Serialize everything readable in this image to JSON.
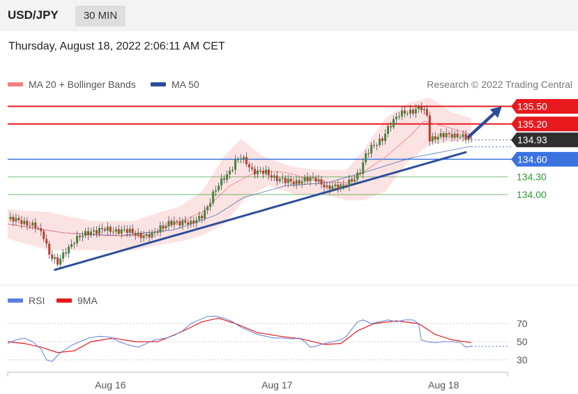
{
  "header": {
    "symbol": "USD/JPY",
    "interval": "30 MIN",
    "datetime": "Thursday, August 18, 2022 2:06:11 AM CET"
  },
  "colors": {
    "resistance": "#e8191d",
    "pivot": "#3a73e0",
    "support": "#2e9a2e",
    "ma20": "#f08080",
    "bands": "#fbd9d9",
    "ma50": "#2c4e9a",
    "trend": "#2c4e9a",
    "rsi": "#5b7fe0",
    "rsi_ma": "#e8191d",
    "candle_up": "#3a8a3a",
    "candle_down": "#c0392b"
  },
  "chart_data": [
    {
      "type": "candlestick",
      "legend": [
        {
          "name": "MA 20 + Bollinger Bands",
          "color": "#f08080"
        },
        {
          "name": "MA 50",
          "color": "#2c4e9a"
        }
      ],
      "credit": "Research © 2022 Trading Central",
      "x_ticks": [
        "Aug 16",
        "Aug 17",
        "Aug 18"
      ],
      "levels": [
        {
          "label": "135.50",
          "value": 135.5,
          "kind": "resistance"
        },
        {
          "label": "135.20",
          "value": 135.2,
          "kind": "resistance"
        },
        {
          "label": "134.93",
          "value": 134.93,
          "kind": "last"
        },
        {
          "label": "134.60",
          "value": 134.6,
          "kind": "pivot"
        },
        {
          "label": "134.30",
          "value": 134.3,
          "kind": "support"
        },
        {
          "label": "134.00",
          "value": 134.0,
          "kind": "support"
        }
      ],
      "close_path": [
        [
          0,
          133.58
        ],
        [
          5,
          133.55
        ],
        [
          10,
          133.45
        ],
        [
          13,
          133.3
        ],
        [
          15,
          133.0
        ],
        [
          18,
          132.82
        ],
        [
          21,
          133.05
        ],
        [
          24,
          133.22
        ],
        [
          27,
          133.3
        ],
        [
          30,
          133.38
        ],
        [
          35,
          133.4
        ],
        [
          40,
          133.39
        ],
        [
          45,
          133.36
        ],
        [
          48,
          133.31
        ],
        [
          50,
          133.28
        ],
        [
          52,
          133.31
        ],
        [
          55,
          133.45
        ],
        [
          58,
          133.5
        ],
        [
          61,
          133.52
        ],
        [
          64,
          133.55
        ],
        [
          66,
          133.5
        ],
        [
          68,
          133.55
        ],
        [
          70,
          133.65
        ],
        [
          72,
          133.8
        ],
        [
          74,
          134.0
        ],
        [
          76,
          134.15
        ],
        [
          78,
          134.3
        ],
        [
          80,
          134.4
        ],
        [
          82,
          134.55
        ],
        [
          84,
          134.62
        ],
        [
          86,
          134.55
        ],
        [
          88,
          134.42
        ],
        [
          90,
          134.38
        ],
        [
          93,
          134.37
        ],
        [
          96,
          134.3
        ],
        [
          100,
          134.22
        ],
        [
          104,
          134.22
        ],
        [
          108,
          134.25
        ],
        [
          111,
          134.28
        ],
        [
          113,
          134.2
        ],
        [
          115,
          134.1
        ],
        [
          117,
          134.12
        ],
        [
          119,
          134.15
        ],
        [
          122,
          134.18
        ],
        [
          125,
          134.25
        ],
        [
          127,
          134.4
        ],
        [
          129,
          134.7
        ],
        [
          131,
          134.8
        ],
        [
          133,
          134.85
        ],
        [
          135,
          134.95
        ],
        [
          137,
          135.15
        ],
        [
          139,
          135.25
        ],
        [
          141,
          135.35
        ],
        [
          143,
          135.4
        ],
        [
          146,
          135.43
        ],
        [
          149,
          135.46
        ],
        [
          151,
          135.35
        ],
        [
          152,
          134.95
        ],
        [
          154,
          134.98
        ],
        [
          157,
          135.0
        ],
        [
          160,
          135.02
        ],
        [
          163,
          135.0
        ],
        [
          165,
          134.95
        ],
        [
          167,
          134.93
        ]
      ],
      "ma50_path": [
        [
          0,
          133.5
        ],
        [
          20,
          133.35
        ],
        [
          40,
          133.3
        ],
        [
          60,
          133.4
        ],
        [
          75,
          133.65
        ],
        [
          85,
          133.95
        ],
        [
          100,
          134.15
        ],
        [
          115,
          134.2
        ],
        [
          130,
          134.4
        ],
        [
          145,
          134.62
        ],
        [
          167,
          134.82
        ]
      ],
      "ma20_path": [
        [
          0,
          133.5
        ],
        [
          20,
          133.35
        ],
        [
          35,
          133.3
        ],
        [
          50,
          133.3
        ],
        [
          60,
          133.5
        ],
        [
          70,
          133.7
        ],
        [
          80,
          134.15
        ],
        [
          90,
          134.4
        ],
        [
          100,
          134.38
        ],
        [
          112,
          134.22
        ],
        [
          122,
          134.2
        ],
        [
          135,
          134.6
        ],
        [
          145,
          135.0
        ],
        [
          150,
          135.25
        ],
        [
          158,
          135.15
        ],
        [
          167,
          135.02
        ]
      ],
      "band_upper_path": [
        [
          0,
          133.75
        ],
        [
          15,
          133.7
        ],
        [
          30,
          133.55
        ],
        [
          45,
          133.55
        ],
        [
          55,
          133.7
        ],
        [
          62,
          133.8
        ],
        [
          70,
          134.05
        ],
        [
          78,
          134.65
        ],
        [
          84,
          134.95
        ],
        [
          92,
          134.65
        ],
        [
          102,
          134.48
        ],
        [
          112,
          134.42
        ],
        [
          122,
          134.42
        ],
        [
          128,
          134.75
        ],
        [
          136,
          135.3
        ],
        [
          144,
          135.55
        ],
        [
          152,
          135.65
        ],
        [
          160,
          135.4
        ],
        [
          167,
          135.3
        ]
      ],
      "band_lower_path": [
        [
          0,
          133.25
        ],
        [
          15,
          133.05
        ],
        [
          30,
          133.05
        ],
        [
          45,
          133.05
        ],
        [
          55,
          133.15
        ],
        [
          62,
          133.2
        ],
        [
          70,
          133.3
        ],
        [
          78,
          133.5
        ],
        [
          86,
          133.95
        ],
        [
          94,
          134.15
        ],
        [
          104,
          134.0
        ],
        [
          114,
          134.0
        ],
        [
          122,
          133.9
        ],
        [
          128,
          133.9
        ],
        [
          136,
          134.05
        ],
        [
          144,
          134.55
        ],
        [
          152,
          134.85
        ],
        [
          160,
          134.9
        ],
        [
          167,
          134.92
        ]
      ],
      "trendline": [
        [
          17,
          132.72
        ],
        [
          165,
          134.72
        ]
      ],
      "projection_arrow": [
        [
          166,
          134.98
        ],
        [
          178,
          135.5
        ]
      ]
    },
    {
      "type": "line",
      "legend": [
        {
          "name": "RSI",
          "color": "#5b7fe0"
        },
        {
          "name": "9MA",
          "color": "#e8191d"
        }
      ],
      "ylim": [
        25,
        82
      ],
      "y_ticks": [
        "70",
        "50",
        "30"
      ],
      "rsi_path": [
        [
          0,
          48
        ],
        [
          3,
          52
        ],
        [
          6,
          54
        ],
        [
          9,
          50
        ],
        [
          12,
          42
        ],
        [
          14,
          30
        ],
        [
          16,
          28
        ],
        [
          18,
          35
        ],
        [
          20,
          40
        ],
        [
          23,
          46
        ],
        [
          26,
          50
        ],
        [
          29,
          54
        ],
        [
          33,
          56
        ],
        [
          37,
          55
        ],
        [
          40,
          50
        ],
        [
          44,
          46
        ],
        [
          47,
          44
        ],
        [
          50,
          48
        ],
        [
          53,
          52
        ],
        [
          57,
          54
        ],
        [
          60,
          57
        ],
        [
          63,
          62
        ],
        [
          66,
          70
        ],
        [
          69,
          74
        ],
        [
          72,
          78
        ],
        [
          75,
          78
        ],
        [
          78,
          76
        ],
        [
          81,
          72
        ],
        [
          84,
          66
        ],
        [
          87,
          62
        ],
        [
          90,
          58
        ],
        [
          93,
          56
        ],
        [
          96,
          54
        ],
        [
          99,
          54
        ],
        [
          102,
          53
        ],
        [
          105,
          54
        ],
        [
          107,
          50
        ],
        [
          109,
          44
        ],
        [
          111,
          45
        ],
        [
          114,
          48
        ],
        [
          117,
          50
        ],
        [
          120,
          52
        ],
        [
          122,
          56
        ],
        [
          124,
          64
        ],
        [
          126,
          72
        ],
        [
          128,
          74
        ],
        [
          131,
          70
        ],
        [
          134,
          72
        ],
        [
          137,
          74
        ],
        [
          140,
          72
        ],
        [
          143,
          74
        ],
        [
          146,
          74
        ],
        [
          148,
          70
        ],
        [
          149,
          52
        ],
        [
          151,
          50
        ],
        [
          154,
          49
        ],
        [
          157,
          50
        ],
        [
          160,
          50
        ],
        [
          163,
          49
        ],
        [
          165,
          44
        ],
        [
          167,
          45
        ]
      ],
      "rsi_ma_path": [
        [
          0,
          50
        ],
        [
          6,
          48
        ],
        [
          12,
          44
        ],
        [
          18,
          38
        ],
        [
          24,
          40
        ],
        [
          30,
          50
        ],
        [
          38,
          54
        ],
        [
          46,
          50
        ],
        [
          54,
          50
        ],
        [
          62,
          60
        ],
        [
          70,
          72
        ],
        [
          76,
          76
        ],
        [
          82,
          70
        ],
        [
          90,
          60
        ],
        [
          98,
          56
        ],
        [
          106,
          53
        ],
        [
          114,
          47
        ],
        [
          120,
          48
        ],
        [
          126,
          62
        ],
        [
          132,
          70
        ],
        [
          140,
          73
        ],
        [
          148,
          70
        ],
        [
          154,
          58
        ],
        [
          160,
          52
        ],
        [
          167,
          49
        ]
      ]
    }
  ]
}
